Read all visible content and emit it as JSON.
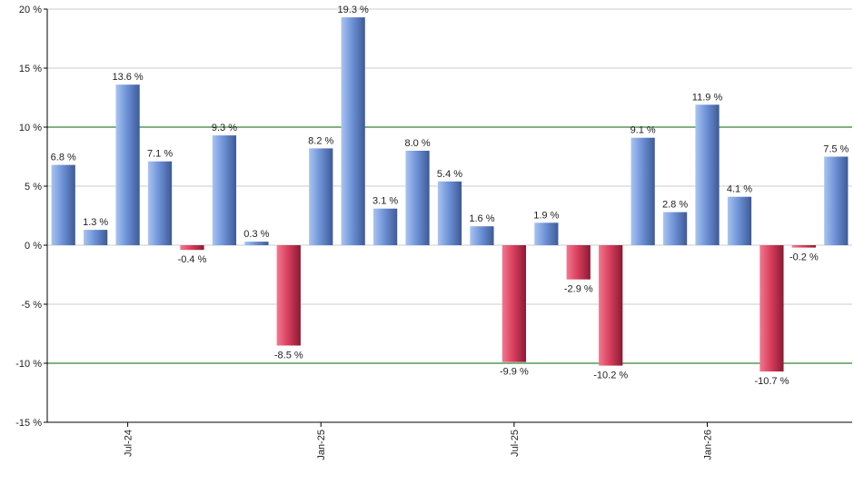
{
  "chart_data": {
    "type": "bar",
    "title": "",
    "xlabel": "",
    "ylabel": "",
    "ylim": [
      -15,
      20
    ],
    "yticks": [
      -15,
      -10,
      -5,
      0,
      5,
      10,
      15,
      20
    ],
    "ytick_labels": [
      "-15 %",
      "-10 %",
      "-5 %",
      "0 %",
      "5 %",
      "10 %",
      "15 %",
      "20 %"
    ],
    "values": [
      6.8,
      1.3,
      13.6,
      7.1,
      -0.4,
      9.3,
      0.3,
      -8.5,
      8.2,
      19.3,
      3.1,
      8.0,
      5.4,
      1.6,
      -9.9,
      1.9,
      -2.9,
      -10.2,
      9.1,
      2.8,
      11.9,
      4.1,
      -10.7,
      -0.2,
      7.5
    ],
    "value_labels": [
      "6.8 %",
      "1.3 %",
      "13.6 %",
      "7.1 %",
      "-0.4 %",
      "9.3 %",
      "0.3 %",
      "-8.5 %",
      "8.2 %",
      "19.3 %",
      "3.1 %",
      "8.0 %",
      "5.4 %",
      "1.6 %",
      "-9.9 %",
      "1.9 %",
      "-2.9 %",
      "-10.2 %",
      "9.1 %",
      "2.8 %",
      "11.9 %",
      "4.1 %",
      "-10.7 %",
      "-0.2 %",
      "7.5 %"
    ],
    "x_tick_labels": [
      {
        "bar_index": 2,
        "label": "Jul-24"
      },
      {
        "bar_index": 8,
        "label": "Jan-25"
      },
      {
        "bar_index": 14,
        "label": "Jul-25"
      },
      {
        "bar_index": 20,
        "label": "Jan-26"
      }
    ],
    "reference_lines": [
      10,
      -10
    ],
    "colors": {
      "positive_light": "#a8c4f0",
      "positive_mid": "#6f93d8",
      "positive_dark": "#3d5a96",
      "negative_light": "#f2788f",
      "negative_mid": "#d9405e",
      "negative_dark": "#8a1a33",
      "grid": "#cccccc",
      "reference": "#006400",
      "axis": "#000000"
    },
    "grid": true,
    "legend": "none"
  }
}
